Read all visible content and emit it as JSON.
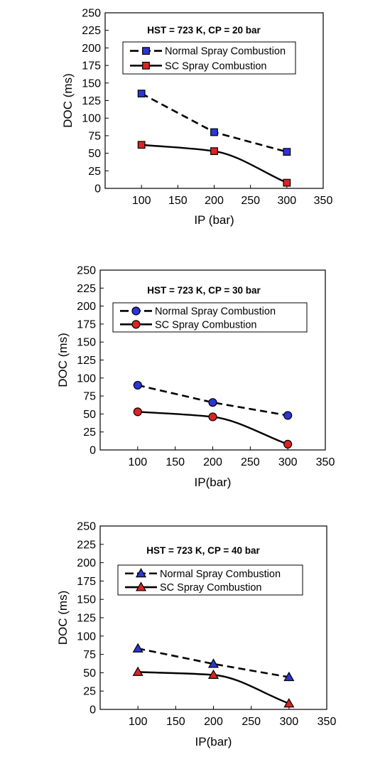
{
  "colors": {
    "normal": "#2b35d9",
    "sc": "#dc2323",
    "line": "#000000"
  },
  "chart_data": [
    {
      "type": "line",
      "title": "HST = 723 K, CP = 20 bar",
      "xlabel": "IP (bar)",
      "ylabel": "DOC (ms)",
      "xlim": [
        50,
        350
      ],
      "ylim": [
        0,
        250
      ],
      "xticks": [
        100,
        150,
        200,
        250,
        300,
        350
      ],
      "yticks": [
        0,
        25,
        50,
        75,
        100,
        125,
        150,
        175,
        200,
        225,
        250
      ],
      "marker": "square",
      "legend_position": "top-right",
      "series": [
        {
          "name": "Normal Spray Combustion",
          "color_key": "normal",
          "line_style": "dashed",
          "x": [
            100,
            200,
            300
          ],
          "y": [
            135,
            80,
            52
          ]
        },
        {
          "name": "SC Spray Combustion",
          "color_key": "sc",
          "line_style": "solid",
          "x": [
            100,
            200,
            300
          ],
          "y": [
            62,
            53,
            8
          ]
        }
      ]
    },
    {
      "type": "line",
      "title": "HST = 723 K, CP = 30 bar",
      "xlabel": "IP(bar)",
      "ylabel": "DOC (ms)",
      "xlim": [
        50,
        350
      ],
      "ylim": [
        0,
        250
      ],
      "xticks": [
        100,
        150,
        200,
        250,
        300,
        350
      ],
      "yticks": [
        0,
        25,
        50,
        75,
        100,
        125,
        150,
        175,
        200,
        225,
        250
      ],
      "marker": "circle",
      "legend_position": "top-right",
      "series": [
        {
          "name": "Normal Spray Combustion",
          "color_key": "normal",
          "line_style": "dashed",
          "x": [
            100,
            200,
            300
          ],
          "y": [
            90,
            66,
            48
          ]
        },
        {
          "name": "SC Spray Combustion",
          "color_key": "sc",
          "line_style": "solid",
          "x": [
            100,
            200,
            300
          ],
          "y": [
            53,
            46,
            8
          ]
        }
      ]
    },
    {
      "type": "line",
      "title": "HST = 723 K, CP = 40 bar",
      "xlabel": "IP(bar)",
      "ylabel": "DOC (ms)",
      "xlim": [
        50,
        350
      ],
      "ylim": [
        0,
        250
      ],
      "xticks": [
        100,
        150,
        200,
        250,
        300,
        350
      ],
      "yticks": [
        0,
        25,
        50,
        75,
        100,
        125,
        150,
        175,
        200,
        225,
        250
      ],
      "marker": "triangle",
      "legend_position": "top-right",
      "series": [
        {
          "name": "Normal Spray Combustion",
          "color_key": "normal",
          "line_style": "dashed",
          "x": [
            100,
            200,
            300
          ],
          "y": [
            83,
            62,
            44
          ]
        },
        {
          "name": "SC Spray Combustion",
          "color_key": "sc",
          "line_style": "solid",
          "x": [
            100,
            200,
            300
          ],
          "y": [
            51,
            47,
            8
          ]
        }
      ]
    }
  ]
}
